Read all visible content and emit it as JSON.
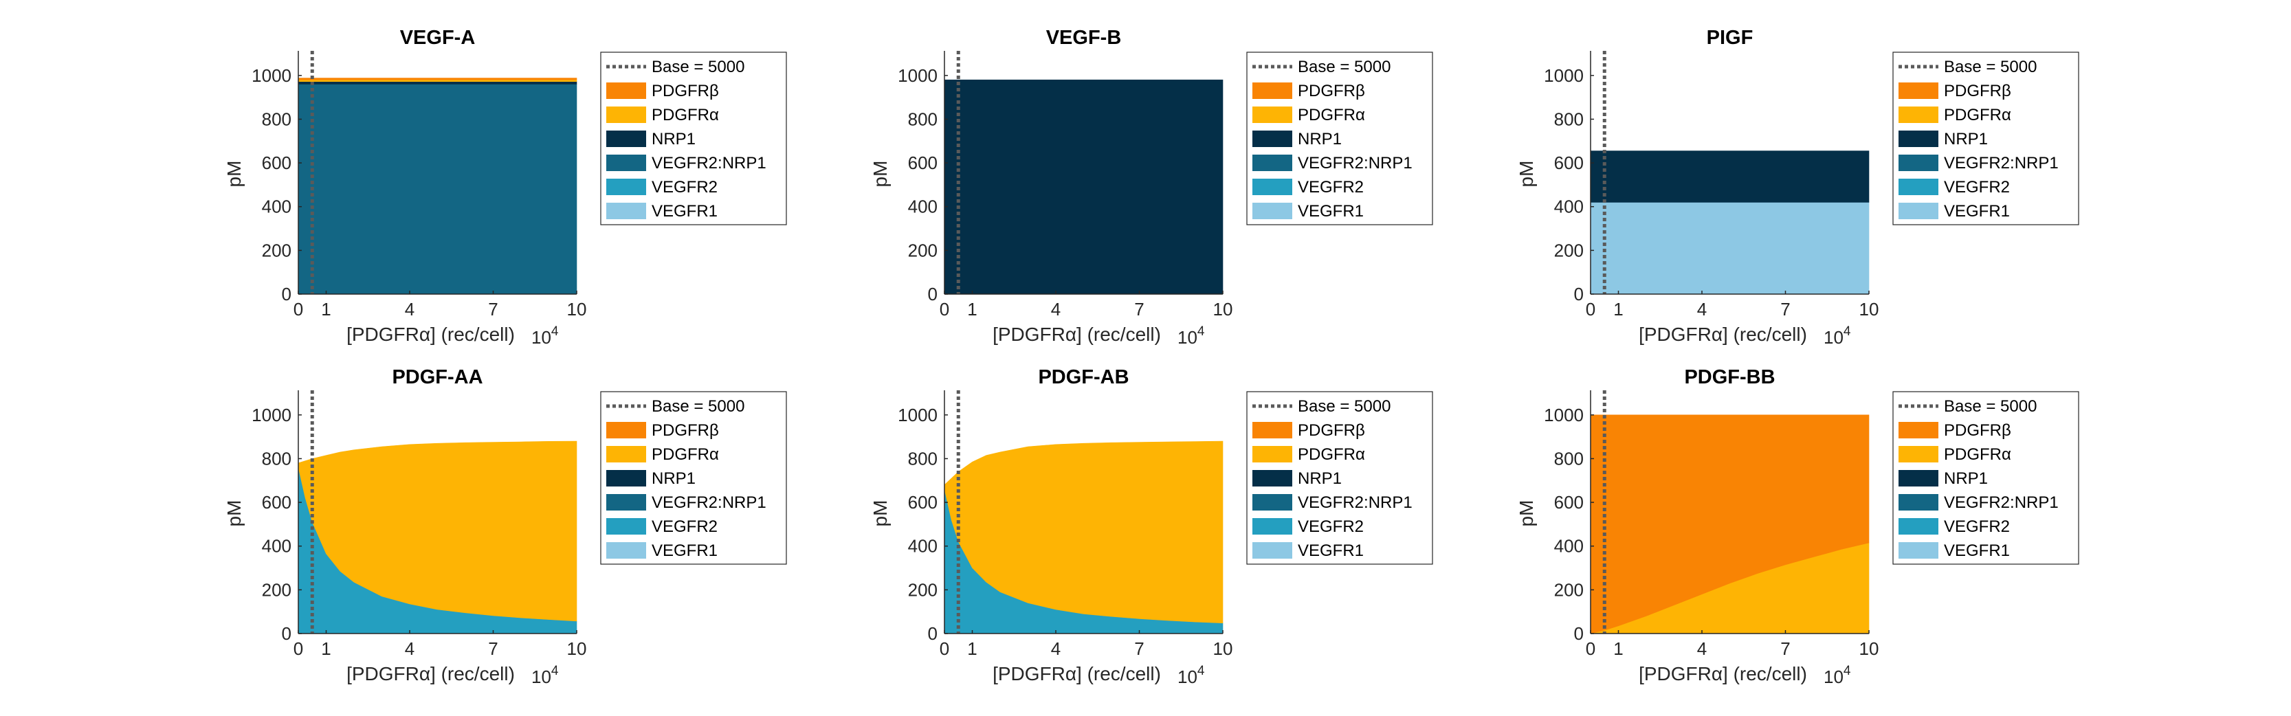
{
  "figure": {
    "legend_entries": [
      {
        "label": "Base = 5000",
        "kind": "dotted-line",
        "color": "#5a5a5a"
      },
      {
        "label": "PDGFRβ",
        "kind": "patch",
        "color": "#f98404"
      },
      {
        "label": "PDGFRα",
        "kind": "patch",
        "color": "#feb404"
      },
      {
        "label": "NRP1",
        "kind": "patch",
        "color": "#042f48"
      },
      {
        "label": "VEGFR2:NRP1",
        "kind": "patch",
        "color": "#136684"
      },
      {
        "label": "VEGFR2",
        "kind": "patch",
        "color": "#249fc0"
      },
      {
        "label": "VEGFR1",
        "kind": "patch",
        "color": "#8dc8e4"
      }
    ],
    "legend_placement": "outside-right",
    "grid": false
  },
  "chart_data": [
    {
      "type": "area",
      "title": "VEGF-A",
      "xlabel": "[PDGFRα] (rec/cell)",
      "x_exponent": "10^4",
      "ylabel": "pM",
      "xlim": [
        0,
        10
      ],
      "ylim": [
        0,
        1100
      ],
      "xticks": [
        0,
        1,
        4,
        7,
        10
      ],
      "yticks": [
        0,
        200,
        400,
        600,
        800,
        1000
      ],
      "baseline_x": 0.5,
      "x": [
        0,
        10
      ],
      "series": [
        {
          "name": "VEGFR2:NRP1",
          "color": "#136684",
          "values": [
            960,
            960
          ]
        },
        {
          "name": "NRP1",
          "color": "#042f48",
          "values": [
            12,
            12
          ]
        },
        {
          "name": "PDGFRα",
          "color": "#feb404",
          "values": [
            8,
            8
          ]
        },
        {
          "name": "PDGFRβ",
          "color": "#f98404",
          "values": [
            8,
            8
          ]
        }
      ]
    },
    {
      "type": "area",
      "title": "VEGF-B",
      "xlabel": "[PDGFRα] (rec/cell)",
      "x_exponent": "10^4",
      "ylabel": "pM",
      "xlim": [
        0,
        10
      ],
      "ylim": [
        0,
        1100
      ],
      "xticks": [
        0,
        1,
        4,
        7,
        10
      ],
      "yticks": [
        0,
        200,
        400,
        600,
        800,
        1000
      ],
      "baseline_x": 0.5,
      "x": [
        0,
        10
      ],
      "series": [
        {
          "name": "NRP1",
          "color": "#042f48",
          "values": [
            980,
            980
          ]
        }
      ]
    },
    {
      "type": "area",
      "title": "PIGF",
      "xlabel": "[PDGFRα] (rec/cell)",
      "x_exponent": "10^4",
      "ylabel": "pM",
      "xlim": [
        0,
        10
      ],
      "ylim": [
        0,
        1100
      ],
      "xticks": [
        0,
        1,
        4,
        7,
        10
      ],
      "yticks": [
        0,
        200,
        400,
        600,
        800,
        1000
      ],
      "baseline_x": 0.5,
      "x": [
        0,
        10
      ],
      "series": [
        {
          "name": "VEGFR1",
          "color": "#8dc8e4",
          "values": [
            420,
            420
          ]
        },
        {
          "name": "NRP1",
          "color": "#042f48",
          "values": [
            235,
            235
          ]
        }
      ]
    },
    {
      "type": "area",
      "title": "PDGF-AA",
      "xlabel": "[PDGFRα] (rec/cell)",
      "x_exponent": "10^4",
      "ylabel": "pM",
      "xlim": [
        0,
        10
      ],
      "ylim": [
        0,
        1100
      ],
      "xticks": [
        0,
        1,
        4,
        7,
        10
      ],
      "yticks": [
        0,
        200,
        400,
        600,
        800,
        1000
      ],
      "baseline_x": 0.5,
      "x": [
        0,
        0.25,
        0.5,
        1,
        1.5,
        2,
        3,
        4,
        5,
        6,
        7,
        8,
        9,
        10
      ],
      "series": [
        {
          "name": "VEGFR2",
          "color": "#249fc0",
          "values": [
            760,
            620,
            510,
            365,
            285,
            235,
            170,
            135,
            110,
            95,
            82,
            72,
            64,
            57
          ]
        },
        {
          "name": "PDGFRα",
          "color": "#feb404",
          "values": [
            20,
            170,
            290,
            450,
            545,
            605,
            685,
            730,
            760,
            778,
            793,
            805,
            815,
            823
          ]
        }
      ]
    },
    {
      "type": "area",
      "title": "PDGF-AB",
      "xlabel": "[PDGFRα] (rec/cell)",
      "x_exponent": "10^4",
      "ylabel": "pM",
      "xlim": [
        0,
        10
      ],
      "ylim": [
        0,
        1100
      ],
      "xticks": [
        0,
        1,
        4,
        7,
        10
      ],
      "yticks": [
        0,
        200,
        400,
        600,
        800,
        1000
      ],
      "baseline_x": 0.5,
      "x": [
        0,
        0.25,
        0.5,
        1,
        1.5,
        2,
        3,
        4,
        5,
        6,
        7,
        8,
        9,
        10
      ],
      "series": [
        {
          "name": "VEGFR2",
          "color": "#249fc0",
          "values": [
            660,
            520,
            420,
            300,
            235,
            190,
            140,
            110,
            90,
            78,
            68,
            60,
            53,
            48
          ]
        },
        {
          "name": "PDGFRα",
          "color": "#feb404",
          "values": [
            20,
            190,
            320,
            485,
            580,
            640,
            715,
            755,
            780,
            795,
            807,
            817,
            825,
            832
          ]
        }
      ]
    },
    {
      "type": "area",
      "title": "PDGF-BB",
      "xlabel": "[PDGFRα] (rec/cell)",
      "x_exponent": "10^4",
      "ylabel": "pM",
      "xlim": [
        0,
        10
      ],
      "ylim": [
        0,
        1100
      ],
      "xticks": [
        0,
        1,
        4,
        7,
        10
      ],
      "yticks": [
        0,
        200,
        400,
        600,
        800,
        1000
      ],
      "baseline_x": 0.5,
      "x": [
        0,
        0.5,
        1,
        2,
        3,
        4,
        5,
        6,
        7,
        8,
        9,
        10
      ],
      "series": [
        {
          "name": "PDGFRα",
          "color": "#feb404",
          "values": [
            0,
            15,
            35,
            80,
            130,
            180,
            230,
            275,
            315,
            350,
            385,
            415
          ]
        },
        {
          "name": "PDGFRβ",
          "color": "#f98404",
          "values": [
            1000,
            985,
            965,
            920,
            870,
            820,
            770,
            725,
            685,
            650,
            615,
            585
          ]
        }
      ]
    }
  ]
}
